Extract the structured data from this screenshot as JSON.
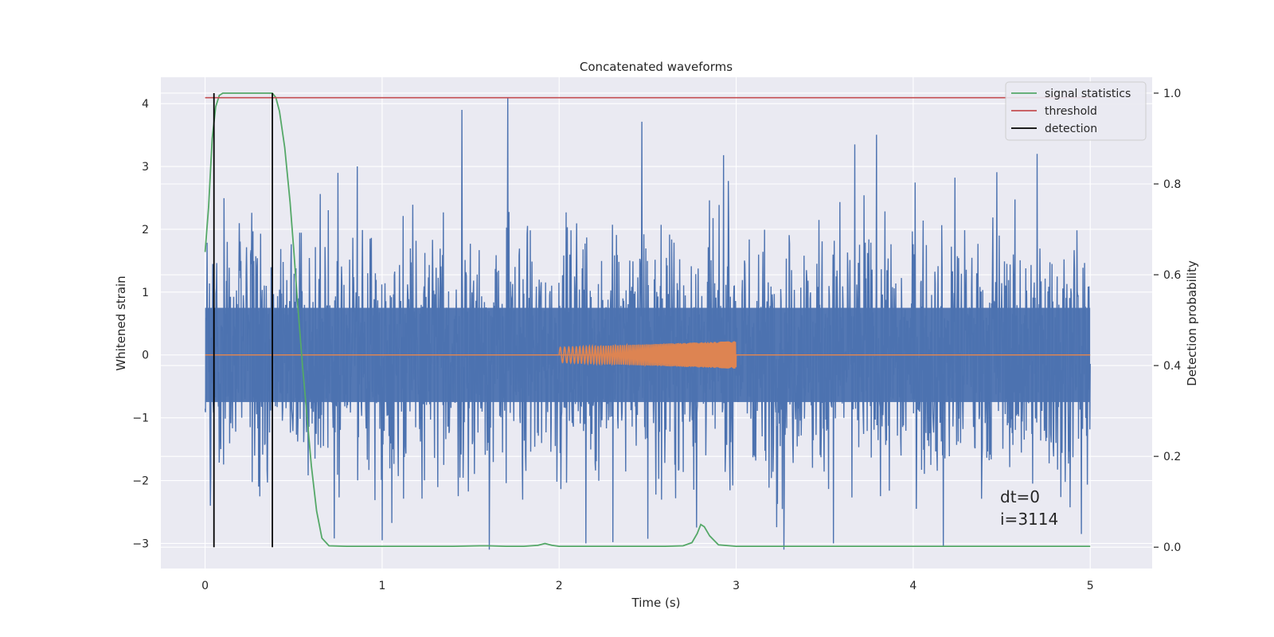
{
  "chart_data": {
    "type": "line",
    "title": "Concatenated waveforms",
    "xlabel": "Time (s)",
    "ylabel_left": "Whitened strain",
    "ylabel_right": "Detection probability",
    "xlim": [
      -0.25,
      5.35
    ],
    "ylim_left": [
      -3.4,
      4.42
    ],
    "ylim_right": [
      -0.047,
      1.035
    ],
    "x_ticks": [
      0,
      1,
      2,
      3,
      4,
      5
    ],
    "y_ticks_left": [
      -3,
      -2,
      -1,
      0,
      1,
      2,
      3,
      4
    ],
    "y_ticks_left_labels": [
      "−3",
      "−2",
      "−1",
      "0",
      "1",
      "2",
      "3",
      "4"
    ],
    "y_ticks_right": [
      0.0,
      0.2,
      0.4,
      0.6,
      0.8,
      1.0
    ],
    "y_ticks_right_labels": [
      "0.0",
      "0.2",
      "0.4",
      "0.6",
      "0.8",
      "1.0"
    ],
    "grid": true,
    "legend_position": "top-right",
    "colors": {
      "strain": "#4c72b0",
      "injection": "#dd8452",
      "signal_statistics": "#55a868",
      "threshold": "#c44e52",
      "detection": "#000000",
      "background": "#eaeaf2",
      "grid": "#ffffff"
    },
    "series": [
      {
        "name": "signal statistics",
        "axis": "right",
        "x": [
          0,
          0.02,
          0.04,
          0.06,
          0.08,
          0.1,
          0.2,
          0.3,
          0.35,
          0.38,
          0.4,
          0.42,
          0.45,
          0.48,
          0.5,
          0.52,
          0.55,
          0.58,
          0.6,
          0.63,
          0.66,
          0.7,
          0.8,
          1.0,
          1.2,
          1.4,
          1.55,
          1.6,
          1.7,
          1.8,
          1.88,
          1.92,
          1.96,
          2.0,
          2.2,
          2.4,
          2.6,
          2.7,
          2.75,
          2.78,
          2.8,
          2.82,
          2.85,
          2.9,
          3.0,
          3.5,
          4.0,
          4.5,
          5.0
        ],
        "values": [
          0.65,
          0.75,
          0.9,
          0.97,
          0.995,
          1.0,
          1.0,
          1.0,
          1.0,
          1.0,
          0.99,
          0.96,
          0.88,
          0.76,
          0.66,
          0.55,
          0.4,
          0.27,
          0.18,
          0.08,
          0.02,
          0.003,
          0.002,
          0.002,
          0.002,
          0.002,
          0.003,
          0.003,
          0.002,
          0.002,
          0.004,
          0.008,
          0.004,
          0.002,
          0.002,
          0.002,
          0.002,
          0.003,
          0.01,
          0.03,
          0.05,
          0.045,
          0.025,
          0.005,
          0.002,
          0.002,
          0.002,
          0.002,
          0.002
        ]
      },
      {
        "name": "threshold",
        "axis": "right",
        "x": [
          0,
          5
        ],
        "values": [
          0.99,
          0.99
        ]
      },
      {
        "name": "detection",
        "axis": "right",
        "x": [
          0.05,
          0.38
        ],
        "values": [
          1.0,
          1.0
        ]
      }
    ],
    "strain": {
      "axis": "left",
      "x_range": [
        0,
        5
      ],
      "typical_amplitude": 1.3,
      "peaks": [
        {
          "x": 1.45,
          "y": 3.9
        },
        {
          "x": 1.71,
          "y": 4.1
        },
        {
          "x": 3.67,
          "y": 3.35
        },
        {
          "x": 4.7,
          "y": 3.2
        },
        {
          "x": 0.86,
          "y": 3.0
        },
        {
          "x": 1.0,
          "y": -2.95
        },
        {
          "x": 2.15,
          "y": -3.0
        },
        {
          "x": 3.27,
          "y": -3.1
        },
        {
          "x": 3.55,
          "y": -3.0
        },
        {
          "x": 4.17,
          "y": -3.05
        },
        {
          "x": 4.95,
          "y": -2.85
        },
        {
          "x": 0.03,
          "y": -2.4
        }
      ]
    },
    "injection": {
      "axis": "left",
      "x_range": [
        2.0,
        3.0
      ],
      "amplitude_start": 0.12,
      "amplitude_end": 0.22
    },
    "annotation": [
      "dt=0",
      "i=3114"
    ]
  }
}
